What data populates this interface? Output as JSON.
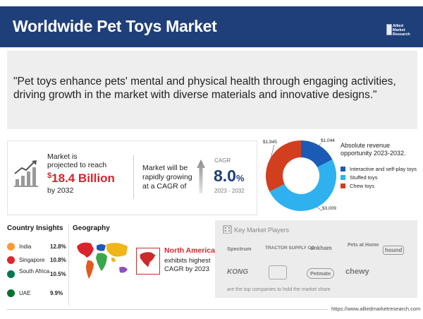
{
  "header": {
    "title": "Worldwide Pet Toys Market",
    "logo_text": [
      "Allied",
      "Market",
      "Research"
    ]
  },
  "quote": "\"Pet toys enhance pets' mental and physical health through engaging activities, driving growth in the market with diverse materials and innovative designs.\"",
  "projection": {
    "label": "Market is projected to reach",
    "currency": "$",
    "value": "18.4 Billion",
    "year": "by 2032"
  },
  "growth": {
    "label": "Market will be rapidly growing at a CAGR of",
    "cagr_label": "CAGR",
    "cagr_value": "8.0",
    "cagr_unit": "%",
    "cagr_range": "2023 - 2032"
  },
  "revenue": {
    "title": "Absolute revenue opportunity 2023-2032."
  },
  "chart_data": {
    "type": "pie",
    "title": "Absolute revenue opportunity 2023-2032.",
    "series": [
      {
        "name": "Interactive and self-play toys",
        "value": 1044,
        "label": "$1,044",
        "color": "#1b5bb5"
      },
      {
        "name": "Stuffed toys",
        "value": 3009,
        "label": "$3,009",
        "color": "#2fb1ef"
      },
      {
        "name": "Chew toys",
        "value": 1945,
        "label": "$1,945",
        "color": "#d23f1f"
      }
    ]
  },
  "country_insights": {
    "title": "Country Insights",
    "rows": [
      {
        "name": "India",
        "pct": "12.8%",
        "flag": "#ff9933"
      },
      {
        "name": "Singapore",
        "pct": "10.8%",
        "flag": "#e0242b"
      },
      {
        "name": "South Africa",
        "pct": "10.5%",
        "flag": "#007a4d"
      },
      {
        "name": "UAE",
        "pct": "9.9%",
        "flag": "#00732f"
      }
    ]
  },
  "geography": {
    "title": "Geography",
    "region": "North America",
    "text": "exhibits highest CAGR by 2023"
  },
  "key_players": {
    "title": "Key Market Players",
    "logos": [
      "Spectrum",
      "TRACTOR SUPPLY CO",
      "unkham",
      "Pets at Home",
      "hound",
      "KONG",
      "",
      "Petmate",
      "chewy"
    ],
    "footnote": "are the top companies to hold the market share"
  },
  "footer": {
    "url": "https://www.alliedmarketresearch.com"
  }
}
